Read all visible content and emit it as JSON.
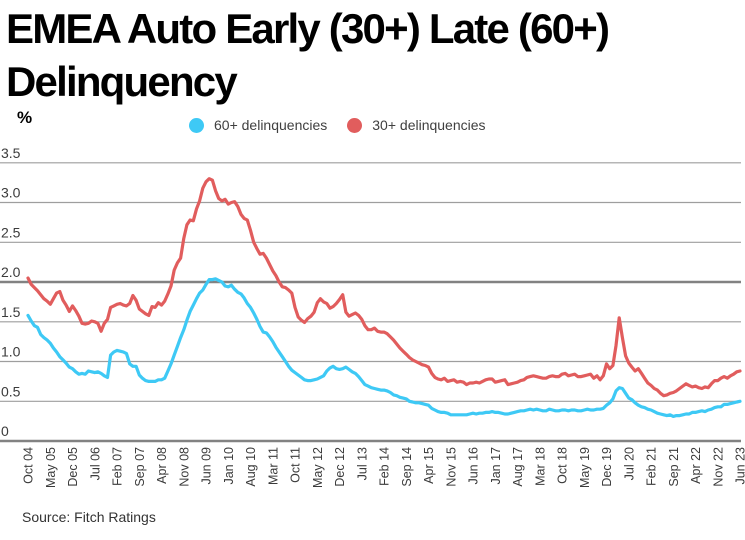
{
  "title": "EMEA Auto Early (30+) Late (60+) Delinquency",
  "unit_label": "%",
  "source": "Source: Fitch Ratings",
  "chart_data": {
    "type": "line",
    "title": "EMEA Auto Early (30+) Late (60+) Delinquency",
    "ylabel": "%",
    "x_frequency": "monthly",
    "x_start": "Oct 2004",
    "x_end": "Jun 2023",
    "x_tick_labels": [
      "Oct 04",
      "May 05",
      "Dec 05",
      "Jul 06",
      "Feb 07",
      "Sep 07",
      "Apr 08",
      "Nov 08",
      "Jun 09",
      "Jan 10",
      "Aug 10",
      "Mar 11",
      "Oct 11",
      "May 12",
      "Dec 12",
      "Jul 13",
      "Feb 14",
      "Sep 14",
      "Apr 15",
      "Nov 15",
      "Jun 16",
      "Jan 17",
      "Aug 17",
      "Mar 18",
      "Oct 18",
      "May 19",
      "Dec 19",
      "Jul 20",
      "Feb 21",
      "Sep 21",
      "Apr 22",
      "Nov 22",
      "Jun 23"
    ],
    "x_ticks_every_n_months": 7,
    "y_ticks": [
      "0",
      "0.5",
      "1.0",
      "1.5",
      "2.0",
      "2.5",
      "3.0",
      "3.5"
    ],
    "ylim": [
      0,
      3.5
    ],
    "grid": "horizontal",
    "emphasized_gridlines": [
      0,
      2
    ],
    "legend_position": "top",
    "gridline_color": "#9e9e9e",
    "emphasized_gridline_color": "#828282",
    "series": [
      {
        "name": "60+ delinquencies",
        "color": "#3ec9f5",
        "values": [
          1.58,
          1.51,
          1.45,
          1.43,
          1.34,
          1.3,
          1.27,
          1.23,
          1.17,
          1.12,
          1.06,
          1.02,
          0.98,
          0.93,
          0.91,
          0.87,
          0.84,
          0.85,
          0.84,
          0.88,
          0.87,
          0.86,
          0.87,
          0.85,
          0.82,
          0.8,
          1.08,
          1.12,
          1.14,
          1.13,
          1.12,
          1.1,
          0.97,
          0.94,
          0.94,
          0.83,
          0.79,
          0.76,
          0.75,
          0.75,
          0.75,
          0.77,
          0.77,
          0.79,
          0.88,
          0.97,
          1.08,
          1.19,
          1.3,
          1.4,
          1.52,
          1.63,
          1.71,
          1.79,
          1.86,
          1.9,
          1.97,
          2.03,
          2.03,
          2.04,
          2.02,
          2.0,
          1.95,
          1.94,
          1.96,
          1.91,
          1.87,
          1.85,
          1.8,
          1.73,
          1.68,
          1.61,
          1.53,
          1.44,
          1.37,
          1.36,
          1.31,
          1.25,
          1.18,
          1.12,
          1.06,
          1.0,
          0.94,
          0.89,
          0.86,
          0.83,
          0.8,
          0.77,
          0.76,
          0.76,
          0.77,
          0.78,
          0.8,
          0.82,
          0.88,
          0.92,
          0.94,
          0.91,
          0.9,
          0.91,
          0.93,
          0.9,
          0.87,
          0.85,
          0.81,
          0.76,
          0.71,
          0.69,
          0.67,
          0.66,
          0.65,
          0.64,
          0.64,
          0.63,
          0.61,
          0.58,
          0.57,
          0.55,
          0.54,
          0.53,
          0.5,
          0.49,
          0.48,
          0.48,
          0.47,
          0.46,
          0.45,
          0.41,
          0.39,
          0.37,
          0.36,
          0.36,
          0.35,
          0.33,
          0.33,
          0.33,
          0.33,
          0.33,
          0.33,
          0.34,
          0.35,
          0.34,
          0.35,
          0.35,
          0.36,
          0.36,
          0.37,
          0.36,
          0.36,
          0.35,
          0.34,
          0.34,
          0.35,
          0.36,
          0.37,
          0.38,
          0.38,
          0.39,
          0.4,
          0.39,
          0.4,
          0.39,
          0.38,
          0.38,
          0.4,
          0.39,
          0.38,
          0.38,
          0.39,
          0.39,
          0.38,
          0.39,
          0.39,
          0.38,
          0.38,
          0.39,
          0.4,
          0.39,
          0.39,
          0.4,
          0.4,
          0.41,
          0.45,
          0.48,
          0.53,
          0.63,
          0.67,
          0.66,
          0.6,
          0.54,
          0.52,
          0.48,
          0.45,
          0.43,
          0.42,
          0.4,
          0.39,
          0.37,
          0.35,
          0.34,
          0.33,
          0.32,
          0.33,
          0.31,
          0.32,
          0.32,
          0.33,
          0.34,
          0.34,
          0.36,
          0.36,
          0.37,
          0.38,
          0.37,
          0.39,
          0.4,
          0.42,
          0.43,
          0.43,
          0.46,
          0.46,
          0.47,
          0.48,
          0.49,
          0.5
        ]
      },
      {
        "name": "30+ delinquencies",
        "color": "#e15d5d",
        "values": [
          2.05,
          1.97,
          1.93,
          1.89,
          1.84,
          1.79,
          1.76,
          1.72,
          1.79,
          1.86,
          1.88,
          1.77,
          1.71,
          1.63,
          1.7,
          1.64,
          1.57,
          1.48,
          1.47,
          1.48,
          1.51,
          1.5,
          1.48,
          1.38,
          1.48,
          1.53,
          1.68,
          1.7,
          1.72,
          1.73,
          1.71,
          1.7,
          1.73,
          1.83,
          1.77,
          1.66,
          1.63,
          1.6,
          1.58,
          1.69,
          1.68,
          1.74,
          1.71,
          1.76,
          1.85,
          1.95,
          2.15,
          2.24,
          2.3,
          2.55,
          2.72,
          2.78,
          2.77,
          2.92,
          3.02,
          3.18,
          3.26,
          3.3,
          3.28,
          3.15,
          3.05,
          3.02,
          3.04,
          2.98,
          3.0,
          3.01,
          2.95,
          2.85,
          2.8,
          2.78,
          2.65,
          2.5,
          2.42,
          2.35,
          2.36,
          2.3,
          2.22,
          2.14,
          2.08,
          2.0,
          1.94,
          1.93,
          1.9,
          1.86,
          1.68,
          1.56,
          1.52,
          1.49,
          1.54,
          1.57,
          1.62,
          1.74,
          1.79,
          1.75,
          1.73,
          1.67,
          1.69,
          1.73,
          1.78,
          1.84,
          1.62,
          1.57,
          1.59,
          1.61,
          1.58,
          1.53,
          1.45,
          1.4,
          1.4,
          1.42,
          1.38,
          1.37,
          1.37,
          1.35,
          1.31,
          1.27,
          1.22,
          1.17,
          1.13,
          1.09,
          1.05,
          1.02,
          1.0,
          0.98,
          0.96,
          0.95,
          0.93,
          0.85,
          0.8,
          0.78,
          0.77,
          0.79,
          0.75,
          0.76,
          0.77,
          0.74,
          0.75,
          0.74,
          0.71,
          0.73,
          0.73,
          0.74,
          0.73,
          0.75,
          0.77,
          0.78,
          0.78,
          0.74,
          0.75,
          0.76,
          0.77,
          0.71,
          0.72,
          0.73,
          0.74,
          0.76,
          0.77,
          0.8,
          0.81,
          0.82,
          0.81,
          0.8,
          0.79,
          0.79,
          0.81,
          0.82,
          0.81,
          0.81,
          0.84,
          0.85,
          0.82,
          0.83,
          0.84,
          0.81,
          0.81,
          0.82,
          0.83,
          0.84,
          0.79,
          0.82,
          0.77,
          0.82,
          0.97,
          0.91,
          0.95,
          1.2,
          1.55,
          1.3,
          1.07,
          0.98,
          0.93,
          0.88,
          0.91,
          0.85,
          0.79,
          0.73,
          0.7,
          0.66,
          0.64,
          0.6,
          0.57,
          0.58,
          0.6,
          0.61,
          0.63,
          0.66,
          0.69,
          0.72,
          0.7,
          0.68,
          0.69,
          0.67,
          0.66,
          0.68,
          0.67,
          0.72,
          0.76,
          0.76,
          0.79,
          0.81,
          0.79,
          0.82,
          0.84,
          0.87,
          0.88
        ]
      }
    ]
  }
}
